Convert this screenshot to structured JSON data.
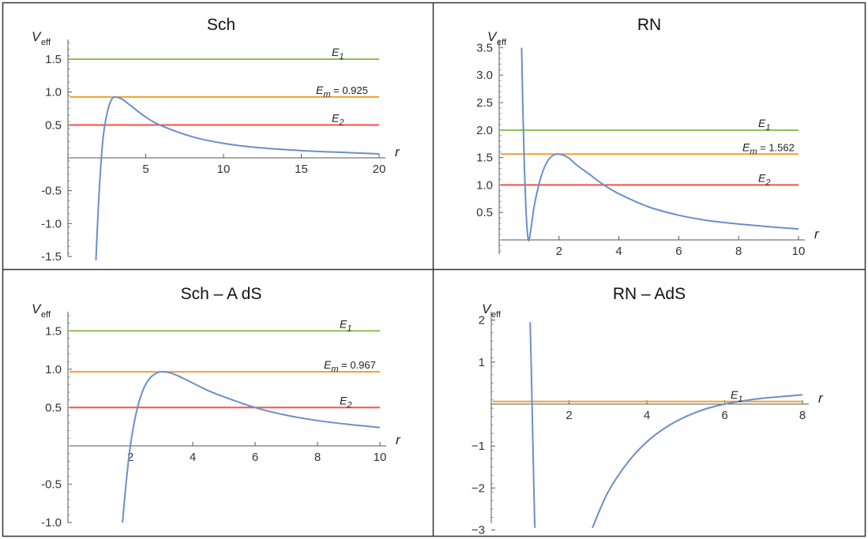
{
  "chart_data": [
    {
      "type": "line",
      "title": "Sch",
      "ylabel": "V",
      "ylabel_sub": "eff",
      "xlabel": "r",
      "xlim": [
        0,
        20
      ],
      "ylim": [
        -1.65,
        1.8
      ],
      "xticks": [
        5,
        10,
        15,
        20
      ],
      "yticks": [
        -1.5,
        -1.0,
        -0.5,
        0.5,
        1.0,
        1.5
      ],
      "ytick_labels": [
        "-1.5",
        "-1.0",
        "-0.5",
        "0.5",
        "1.0",
        "1.5"
      ],
      "series": [
        {
          "name": "V_eff",
          "x": [
            1.8,
            2.0,
            2.25,
            2.5,
            2.75,
            3.0,
            3.5,
            4,
            5,
            6,
            8,
            10,
            12,
            15,
            18,
            20
          ],
          "values": [
            -1.56,
            -0.55,
            0.28,
            0.66,
            0.86,
            0.925,
            0.89,
            0.8,
            0.62,
            0.49,
            0.32,
            0.22,
            0.16,
            0.11,
            0.08,
            0.06
          ]
        }
      ],
      "energy_levels": [
        {
          "name": "E",
          "sub": "1",
          "value": 1.5,
          "color": "#8bc34a",
          "suffix": ""
        },
        {
          "name": "E",
          "sub": "m",
          "value": 0.925,
          "color": "#f0a030",
          "suffix": " = 0.925"
        },
        {
          "name": "E",
          "sub": "2",
          "value": 0.5,
          "color": "#f0534a",
          "suffix": ""
        }
      ]
    },
    {
      "type": "line",
      "title": "RN",
      "ylabel": "V",
      "ylabel_sub": "eff",
      "xlabel": "r",
      "xlim": [
        0,
        10
      ],
      "ylim": [
        -0.2,
        3.65
      ],
      "xticks": [
        2,
        4,
        6,
        8,
        10
      ],
      "yticks": [
        0.5,
        1.0,
        1.5,
        2.0,
        2.5,
        3.0,
        3.5
      ],
      "ytick_labels": [
        "0.5",
        "1.0",
        "1.5",
        "2.0",
        "2.5",
        "3.0",
        "3.5"
      ],
      "series": [
        {
          "name": "V_eff",
          "x": [
            0.75,
            0.8,
            0.85,
            0.9,
            0.95,
            1.0,
            1.1,
            1.2,
            1.4,
            1.6,
            1.8,
            2.0,
            2.3,
            2.6,
            3.0,
            3.5,
            4,
            5,
            6,
            7,
            8,
            9,
            10
          ],
          "values": [
            3.5,
            2.2,
            1.2,
            0.5,
            0.1,
            0.0,
            0.35,
            0.7,
            1.15,
            1.42,
            1.54,
            1.562,
            1.5,
            1.36,
            1.2,
            1.0,
            0.84,
            0.6,
            0.45,
            0.35,
            0.29,
            0.24,
            0.2
          ]
        }
      ],
      "energy_levels": [
        {
          "name": "E",
          "sub": "1",
          "value": 2.0,
          "color": "#8bc34a",
          "suffix": ""
        },
        {
          "name": "E",
          "sub": "m",
          "value": 1.562,
          "color": "#f0a030",
          "suffix": " = 1.562"
        },
        {
          "name": "E",
          "sub": "2",
          "value": 1.0,
          "color": "#f0534a",
          "suffix": ""
        }
      ]
    },
    {
      "type": "line",
      "title": "Sch – A dS",
      "ylabel": "V",
      "ylabel_sub": "eff",
      "xlabel": "r",
      "xlim": [
        0,
        10
      ],
      "ylim": [
        -1.1,
        1.75
      ],
      "xticks": [
        2,
        4,
        6,
        8,
        10
      ],
      "yticks": [
        -1.0,
        -0.5,
        0.5,
        1.0,
        1.5
      ],
      "ytick_labels": [
        "-1.0",
        "-0.5",
        "0.5",
        "1.0",
        "1.5"
      ],
      "series": [
        {
          "name": "V_eff",
          "x": [
            1.75,
            1.85,
            2.0,
            2.2,
            2.4,
            2.6,
            2.8,
            3.0,
            3.3,
            3.6,
            4.0,
            4.5,
            5.0,
            6.0,
            7.0,
            8.0,
            9.0,
            10.0
          ],
          "values": [
            -1.0,
            -0.55,
            0.0,
            0.45,
            0.72,
            0.87,
            0.94,
            0.967,
            0.95,
            0.9,
            0.82,
            0.72,
            0.64,
            0.5,
            0.4,
            0.33,
            0.28,
            0.24
          ]
        }
      ],
      "energy_levels": [
        {
          "name": "E",
          "sub": "1",
          "value": 1.5,
          "color": "#8bc34a",
          "suffix": ""
        },
        {
          "name": "E",
          "sub": "m",
          "value": 0.967,
          "color": "#f0a030",
          "suffix": " = 0.967"
        },
        {
          "name": "E",
          "sub": "2",
          "value": 0.5,
          "color": "#f0534a",
          "suffix": ""
        }
      ]
    },
    {
      "type": "line",
      "title": "RN – AdS",
      "ylabel": "V",
      "ylabel_sub": "eff",
      "xlabel": "r",
      "xlim": [
        0,
        8
      ],
      "ylim": [
        -3.1,
        2.2
      ],
      "xticks": [
        2,
        4,
        6,
        8
      ],
      "yticks": [
        -3,
        -2,
        -1,
        1,
        2
      ],
      "ytick_labels": [
        "−3",
        "−2",
        "−1",
        "1",
        "2"
      ],
      "series": [
        {
          "name": "V_eff branch 1",
          "x": [
            1.0,
            1.03,
            1.06,
            1.09,
            1.12
          ],
          "values": [
            1.95,
            0.8,
            -0.5,
            -1.8,
            -2.95
          ]
        },
        {
          "name": "V_eff branch 2",
          "x": [
            2.6,
            3.0,
            3.5,
            4.0,
            4.5,
            5.0,
            5.5,
            6.0,
            6.5,
            7.0,
            7.5,
            8.0
          ],
          "values": [
            -2.95,
            -2.1,
            -1.4,
            -0.9,
            -0.55,
            -0.3,
            -0.12,
            0.0,
            0.08,
            0.14,
            0.18,
            0.22
          ]
        }
      ],
      "energy_levels": [
        {
          "name": "E",
          "sub": "1",
          "value": 0.06,
          "color": "#f0a030",
          "suffix": ""
        }
      ]
    }
  ]
}
